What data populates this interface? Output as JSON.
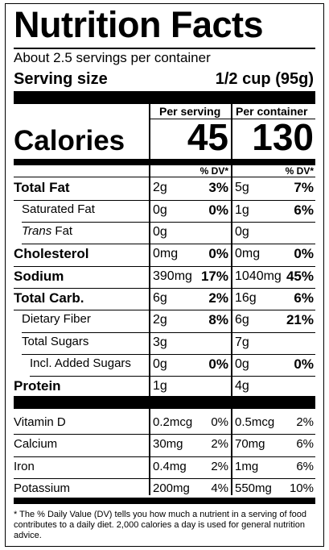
{
  "title": "Nutrition Facts",
  "servings": "About 2.5 servings per container",
  "serving_size_label": "Serving size",
  "serving_size_value": "1/2 cup (95g)",
  "col1_header": "Per serving",
  "col2_header": "Per container",
  "calories_label": "Calories",
  "calories_serving": "45",
  "calories_container": "130",
  "dv_label": "% DV*",
  "nutrients": [
    {
      "name": "Total Fat",
      "a1": "2g",
      "p1": "3%",
      "a2": "5g",
      "p2": "7%"
    },
    {
      "name": "Saturated Fat",
      "a1": "0g",
      "p1": "0%",
      "a2": "1g",
      "p2": "6%"
    },
    {
      "name_italic": "Trans",
      "name_rest": " Fat",
      "a1": "0g",
      "p1": "",
      "a2": "0g",
      "p2": ""
    },
    {
      "name": "Cholesterol",
      "a1": "0mg",
      "p1": "0%",
      "a2": "0mg",
      "p2": "0%"
    },
    {
      "name": "Sodium",
      "a1": "390mg",
      "p1": "17%",
      "a2": "1040mg",
      "p2": "45%"
    },
    {
      "name": "Total Carb.",
      "a1": "6g",
      "p1": "2%",
      "a2": "16g",
      "p2": "6%"
    },
    {
      "name": "Dietary Fiber",
      "a1": "2g",
      "p1": "8%",
      "a2": "6g",
      "p2": "21%"
    },
    {
      "name": "Total Sugars",
      "a1": "3g",
      "p1": "",
      "a2": "7g",
      "p2": ""
    },
    {
      "name": "Incl. Added Sugars",
      "a1": "0g",
      "p1": "0%",
      "a2": "0g",
      "p2": "0%"
    },
    {
      "name": "Protein",
      "a1": "1g",
      "p1": "",
      "a2": "4g",
      "p2": ""
    }
  ],
  "vitamins": [
    {
      "name": "Vitamin D",
      "a1": "0.2mcg",
      "p1": "0%",
      "a2": "0.5mcg",
      "p2": "2%"
    },
    {
      "name": "Calcium",
      "a1": "30mg",
      "p1": "2%",
      "a2": "70mg",
      "p2": "6%"
    },
    {
      "name": "Iron",
      "a1": "0.4mg",
      "p1": "2%",
      "a2": "1mg",
      "p2": "6%"
    },
    {
      "name": "Potassium",
      "a1": "200mg",
      "p1": "4%",
      "a2": "550mg",
      "p2": "10%"
    }
  ],
  "footnote": "* The % Daily Value (DV) tells you how much a nutrient in a serving of food contributes to a daily diet. 2,000 calories a day is used for general nutrition advice."
}
